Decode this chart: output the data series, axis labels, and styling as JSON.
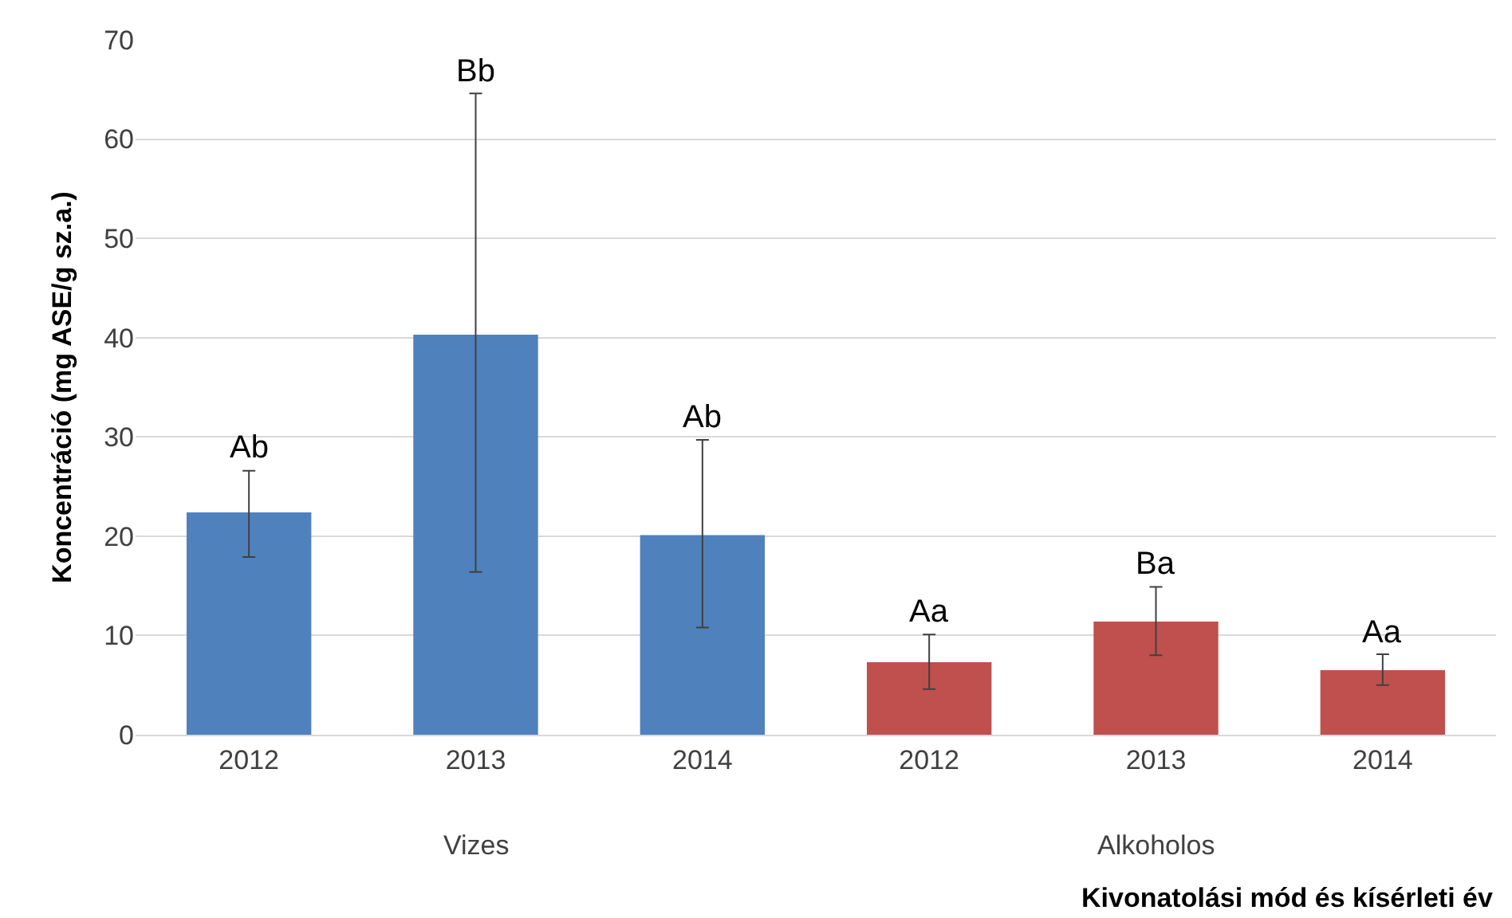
{
  "chart_data": {
    "type": "bar",
    "ylabel": "Koncentráció (mg ASE/g sz.a.)",
    "xlabel": "Kivonatolási mód és kísérleti év",
    "categories": [
      "2012",
      "2013",
      "2014",
      "2012",
      "2013",
      "2014"
    ],
    "values": [
      22.4,
      40.3,
      20.1,
      7.3,
      11.4,
      6.5
    ],
    "colors": [
      "#4f81bd",
      "#4f81bd",
      "#4f81bd",
      "#c0504d",
      "#c0504d",
      "#c0504d"
    ],
    "errors": [
      [
        17.9,
        26.6
      ],
      [
        16.4,
        64.6
      ],
      [
        10.8,
        29.7
      ],
      [
        4.6,
        10.1
      ],
      [
        8.0,
        14.9
      ],
      [
        5.0,
        8.1
      ]
    ],
    "annotations": [
      "Ab",
      "Bb",
      "Ab",
      "Aa",
      "Ba",
      "Aa",
      "Vizes",
      "Alkoholos"
    ],
    "ylim": [
      0,
      70
    ],
    "yticks": [
      0,
      10,
      20,
      30,
      40,
      50,
      60,
      70
    ],
    "grid": "y",
    "legend": false
  }
}
